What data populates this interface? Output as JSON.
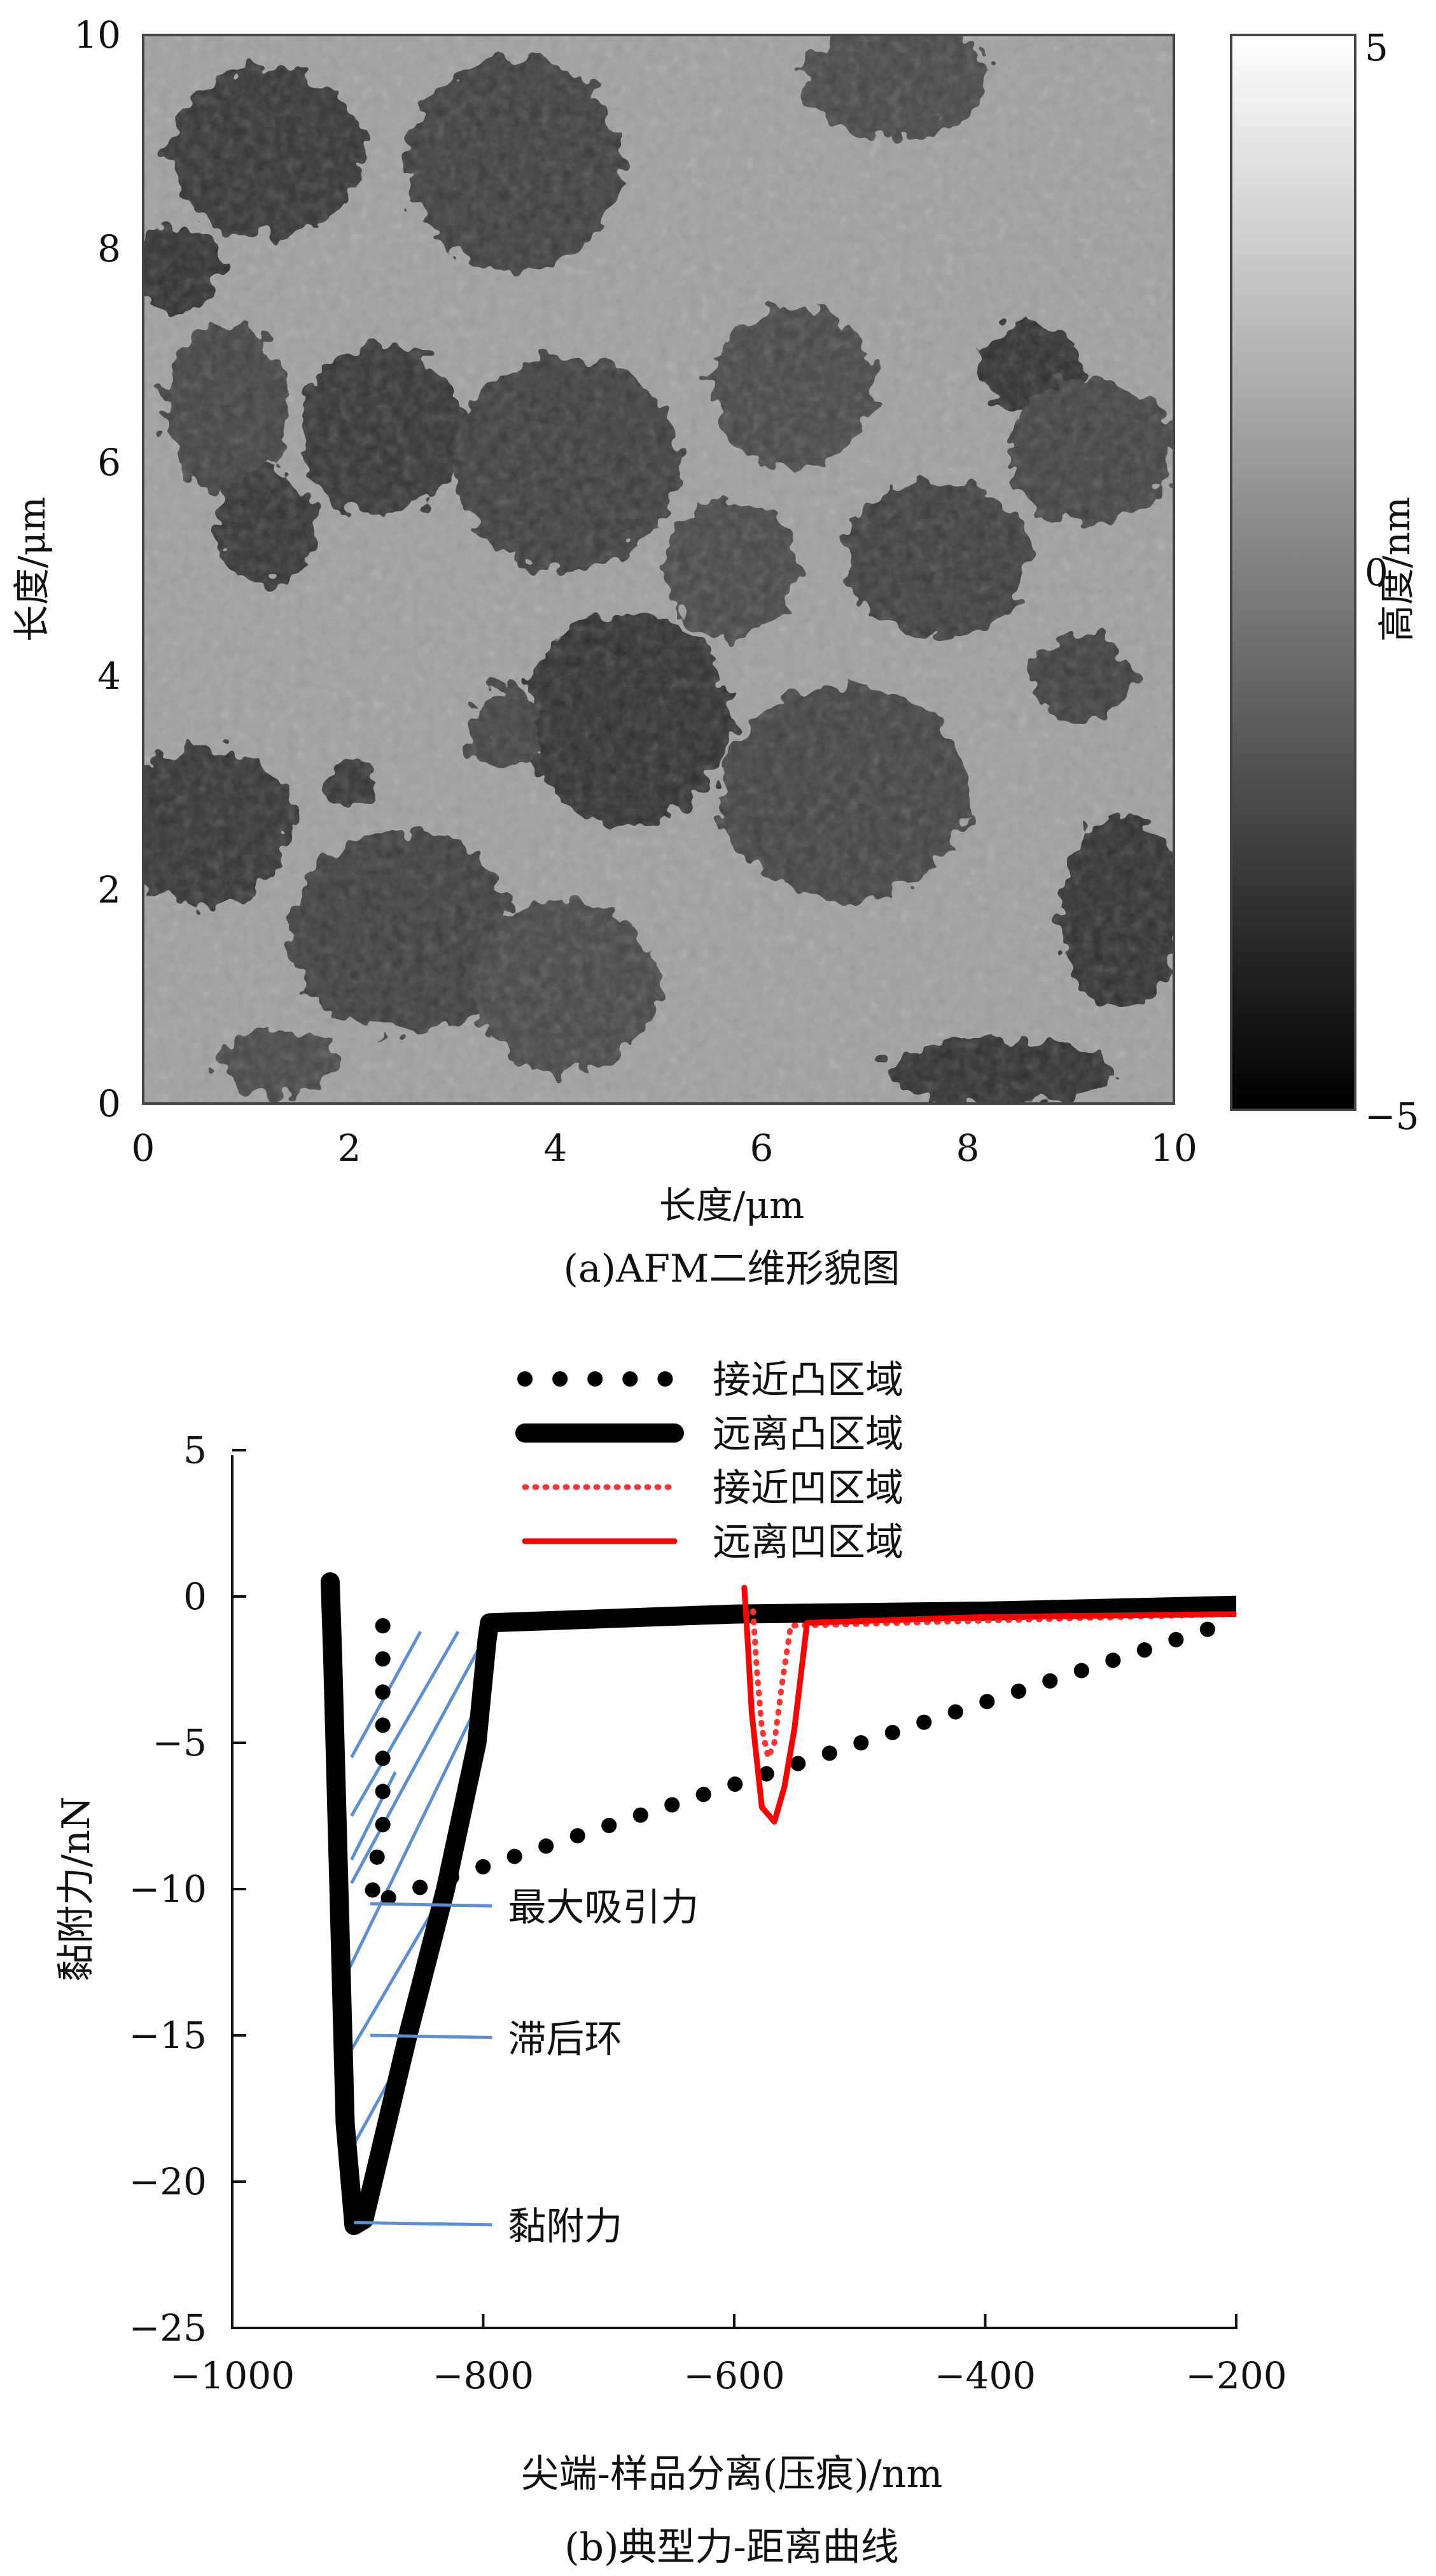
{
  "chart_data": [
    {
      "type": "heatmap",
      "caption": "(a)AFM二维形貌图",
      "xlabel": "长度/μm",
      "ylabel": "长度/μm",
      "xlim": [
        0,
        10
      ],
      "ylim": [
        0,
        10
      ],
      "xticks": [
        "0",
        "2",
        "4",
        "6",
        "8",
        "10"
      ],
      "yticks": [
        "0",
        "2",
        "4",
        "6",
        "8",
        "10"
      ],
      "colorbar": {
        "label": "高度/nm",
        "range": [
          -5,
          5
        ],
        "ticks": [
          "5",
          "0",
          "−5"
        ],
        "colormap": "grayscale"
      },
      "colors": {
        "high": "#ffffff",
        "low": "#000000",
        "background": "#a0a0a0",
        "domains": "#3a3a3a"
      },
      "dark_domains": [
        [
          1.2,
          8.9,
          0.95,
          0.8
        ],
        [
          3.6,
          8.8,
          1.05,
          1.0
        ],
        [
          7.3,
          9.6,
          0.9,
          0.55
        ],
        [
          0.3,
          7.8,
          0.45,
          0.4
        ],
        [
          0.8,
          6.5,
          0.6,
          0.8
        ],
        [
          2.3,
          6.3,
          0.8,
          0.8
        ],
        [
          4.1,
          6.0,
          1.1,
          1.0
        ],
        [
          6.3,
          6.7,
          0.8,
          0.75
        ],
        [
          8.6,
          6.9,
          0.5,
          0.4
        ],
        [
          9.2,
          6.1,
          0.8,
          0.7
        ],
        [
          1.2,
          5.4,
          0.5,
          0.55
        ],
        [
          7.7,
          5.1,
          0.9,
          0.75
        ],
        [
          5.7,
          5.0,
          0.65,
          0.65
        ],
        [
          4.7,
          3.6,
          1.0,
          1.0
        ],
        [
          6.8,
          2.9,
          1.2,
          1.0
        ],
        [
          0.6,
          2.6,
          0.85,
          0.75
        ],
        [
          2.5,
          1.6,
          1.1,
          0.95
        ],
        [
          4.1,
          1.1,
          0.9,
          0.8
        ],
        [
          9.5,
          1.8,
          0.6,
          0.9
        ],
        [
          3.5,
          3.5,
          0.35,
          0.4
        ],
        [
          2.0,
          3.0,
          0.25,
          0.25
        ],
        [
          9.1,
          4.0,
          0.5,
          0.4
        ],
        [
          1.3,
          0.4,
          0.6,
          0.3
        ],
        [
          8.3,
          0.3,
          1.1,
          0.3
        ]
      ]
    },
    {
      "type": "line",
      "caption": "(b)典型力-距离曲线",
      "xlabel": "尖端-样品分离(压痕)/nm",
      "ylabel": "黏附力/nN",
      "xlim": [
        -1000,
        -200
      ],
      "ylim": [
        -25,
        5
      ],
      "xticks": [
        "−1000",
        "−800",
        "−600",
        "−400",
        "−200"
      ],
      "yticks": [
        "5",
        "0",
        "−5",
        "−10",
        "−15",
        "−20",
        "−25"
      ],
      "legend_position": "top-center",
      "series": [
        {
          "name": "接近凸区域",
          "color": "#000000",
          "style": "dotted",
          "x": [
            -880,
            -880,
            -880,
            -880,
            -880,
            -885,
            -888,
            -890,
            -200
          ],
          "y": [
            -1,
            -3,
            -5,
            -6,
            -8,
            -9,
            -10,
            -10.5,
            -0.8
          ]
        },
        {
          "name": "远离凸区域",
          "color": "#000000",
          "style": "solid-thick",
          "x": [
            -200,
            -400,
            -600,
            -795,
            -797,
            -805,
            -830,
            -860,
            -895,
            -903,
            -910,
            -915,
            -920,
            -922
          ],
          "y": [
            -0.3,
            -0.5,
            -0.6,
            -0.9,
            -1.5,
            -5,
            -10,
            -15,
            -21.3,
            -21.5,
            -18,
            -10,
            -2,
            0.5
          ]
        },
        {
          "name": "接近凹区域",
          "color": "#ff3333",
          "style": "dotted",
          "x": [
            -585,
            -582,
            -578,
            -573,
            -568,
            -562,
            -555,
            -200
          ],
          "y": [
            -0.5,
            -2.5,
            -4.5,
            -5.5,
            -5,
            -3,
            -1,
            -0.6
          ]
        },
        {
          "name": "远离凹区域",
          "color": "#ff0000",
          "style": "solid",
          "x": [
            -200,
            -400,
            -542,
            -545,
            -552,
            -560,
            -568,
            -578,
            -586,
            -590,
            -592
          ],
          "y": [
            -0.6,
            -0.7,
            -0.9,
            -2,
            -4.5,
            -6.5,
            -7.7,
            -7.2,
            -4,
            -1,
            0.3
          ]
        }
      ],
      "annotations": [
        {
          "text": "最大吸引力",
          "point": [
            -890,
            -10.5
          ],
          "label_at": [
            -760,
            -10.9
          ]
        },
        {
          "text": "滞后环",
          "point": [
            -890,
            -15
          ],
          "label_at": [
            -760,
            -15.4
          ]
        },
        {
          "text": "黏附力",
          "point": [
            -903,
            -21.4
          ],
          "label_at": [
            -760,
            -21.8
          ]
        }
      ],
      "colors": {
        "hatch": "#5b8fd1",
        "annotation_line": "#5b8fd1"
      }
    }
  ]
}
